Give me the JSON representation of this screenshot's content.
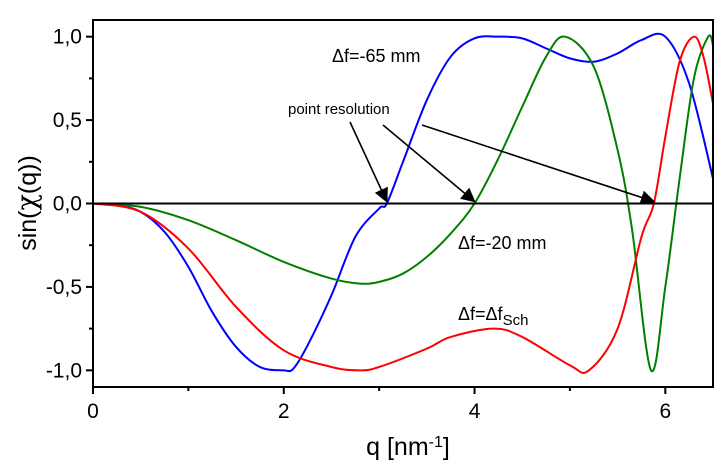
{
  "chart_data": {
    "type": "line",
    "xlabel": "q [nm",
    "xlabel_sup": "-1",
    "xlabel_end": "]",
    "ylabel_prefix": "sin(",
    "ylabel_chi": "χ",
    "ylabel_suffix": "(q))",
    "xlim": [
      0,
      6.5
    ],
    "ylim": [
      -1.1,
      1.1
    ],
    "x_ticks": [
      0,
      2,
      4,
      6
    ],
    "x_tick_labels": [
      "0",
      "2",
      "4",
      "6"
    ],
    "y_ticks": [
      -1.0,
      -0.5,
      0.0,
      0.5,
      1.0
    ],
    "y_tick_labels": [
      "-1,0",
      "-0,5",
      "0,0",
      "0,5",
      "1,0"
    ],
    "grid": false,
    "zero_line": true,
    "series": [
      {
        "color": "#0000ff",
        "description": "Δf=-65 mm",
        "x": [
          0,
          0.25,
          0.5,
          0.75,
          1.0,
          1.25,
          1.5,
          1.75,
          2.0,
          2.1,
          2.25,
          2.5,
          2.75,
          3.0,
          3.08,
          3.25,
          3.5,
          3.75,
          4.0,
          4.25,
          4.5,
          4.75,
          5.0,
          5.25,
          5.5,
          5.75,
          6.0,
          6.25,
          6.5
        ],
        "y": [
          0,
          -0.01,
          -0.05,
          -0.17,
          -0.38,
          -0.65,
          -0.86,
          -0.98,
          -1.0,
          -0.99,
          -0.85,
          -0.55,
          -0.2,
          -0.03,
          0.0,
          0.25,
          0.62,
          0.88,
          0.99,
          1.0,
          0.99,
          0.93,
          0.87,
          0.85,
          0.9,
          0.98,
          1.0,
          0.72,
          0.15
        ]
      },
      {
        "color": "#008000",
        "description": "Δf=-20 mm",
        "x": [
          0,
          0.5,
          1.0,
          1.5,
          2.0,
          2.5,
          2.8,
          3.0,
          3.25,
          3.5,
          3.75,
          4.0,
          4.25,
          4.5,
          4.75,
          4.95,
          5.25,
          5.5,
          5.65,
          5.85,
          6.0,
          6.15,
          6.3,
          6.45,
          6.5
        ],
        "y": [
          0,
          -0.02,
          -0.1,
          -0.22,
          -0.35,
          -0.45,
          -0.48,
          -0.47,
          -0.42,
          -0.32,
          -0.18,
          0.0,
          0.27,
          0.58,
          0.88,
          1.0,
          0.82,
          0.32,
          -0.15,
          -1.0,
          -0.5,
          0.15,
          0.75,
          1.0,
          0.95
        ]
      },
      {
        "color": "#ff0000",
        "description": "Δf=Δf_Sch",
        "x": [
          0,
          0.5,
          1.0,
          1.5,
          2.0,
          2.5,
          2.8,
          3.0,
          3.5,
          3.75,
          4.2,
          4.5,
          5.0,
          5.2,
          5.5,
          5.75,
          5.88,
          6.0,
          6.15,
          6.3,
          6.4,
          6.5
        ],
        "y": [
          0,
          -0.05,
          -0.27,
          -0.62,
          -0.88,
          -0.98,
          -1.0,
          -0.98,
          -0.87,
          -0.8,
          -0.75,
          -0.8,
          -0.97,
          -1.0,
          -0.75,
          -0.2,
          0.0,
          0.4,
          0.85,
          1.0,
          0.88,
          0.6
        ]
      }
    ],
    "annotations": {
      "blue_label": "Δf=-65 mm",
      "green_label": "Δf=-20 mm",
      "red_label_main": "Δf=Δf",
      "red_label_sub": "Sch",
      "pointer_label": "point resolution"
    },
    "arrow_targets": [
      {
        "x": 3.08,
        "y": 0.0
      },
      {
        "x": 4.0,
        "y": 0.0
      },
      {
        "x": 5.88,
        "y": 0.0
      }
    ]
  }
}
